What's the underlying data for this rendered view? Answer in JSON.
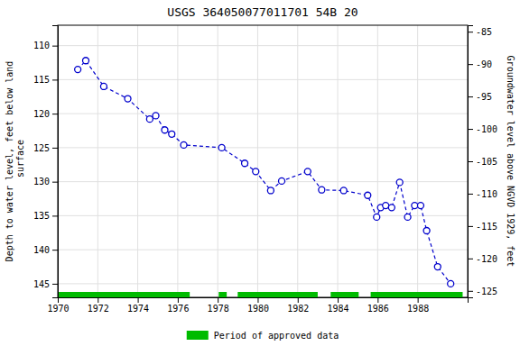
{
  "chart_data": {
    "type": "line",
    "title": "USGS 364050077011701 54B 20",
    "y_label": "Depth to water level, feet below land\n surface",
    "y2_label": "Groundwater level above NGVD 1929, feet",
    "x": [
      1971.0,
      1971.4,
      1972.3,
      1973.5,
      1974.6,
      1974.9,
      1975.35,
      1975.7,
      1976.3,
      1978.2,
      1979.35,
      1979.9,
      1980.65,
      1981.2,
      1982.5,
      1983.2,
      1984.3,
      1985.5,
      1985.95,
      1986.15,
      1986.4,
      1986.7,
      1987.1,
      1987.5,
      1987.85,
      1988.15,
      1988.45,
      1989.0,
      1989.65
    ],
    "series": [
      {
        "color": "#0000cc",
        "marker": "circle",
        "line_style": "dashed",
        "values": [
          113.5,
          112.2,
          116.0,
          117.8,
          120.8,
          120.3,
          122.4,
          123.0,
          124.6,
          125.0,
          127.3,
          128.5,
          131.3,
          129.9,
          128.5,
          131.2,
          131.3,
          132.0,
          135.2,
          133.8,
          133.5,
          133.8,
          130.1,
          135.2,
          133.5,
          133.5,
          137.2,
          142.5,
          145.0
        ]
      }
    ],
    "xlim": [
      1970,
      1990.5
    ],
    "xticks": [
      1970,
      1972,
      1974,
      1976,
      1978,
      1980,
      1982,
      1984,
      1986,
      1988
    ],
    "ylim": [
      147,
      107
    ],
    "yticks": [
      110,
      115,
      120,
      125,
      130,
      135,
      140,
      145
    ],
    "y2lim": [
      -126.0,
      -84.0
    ],
    "y2ticks": [
      -85,
      -90,
      -95,
      -100,
      -105,
      -110,
      -115,
      -120,
      -125
    ],
    "grid": true,
    "periods": {
      "name": "Period of approved data",
      "color": "#00bb00",
      "ranges": [
        [
          1970.05,
          1976.6
        ],
        [
          1978.05,
          1978.45
        ],
        [
          1979.0,
          1983.0
        ],
        [
          1983.65,
          1985.05
        ],
        [
          1985.65,
          1990.25
        ]
      ]
    }
  }
}
